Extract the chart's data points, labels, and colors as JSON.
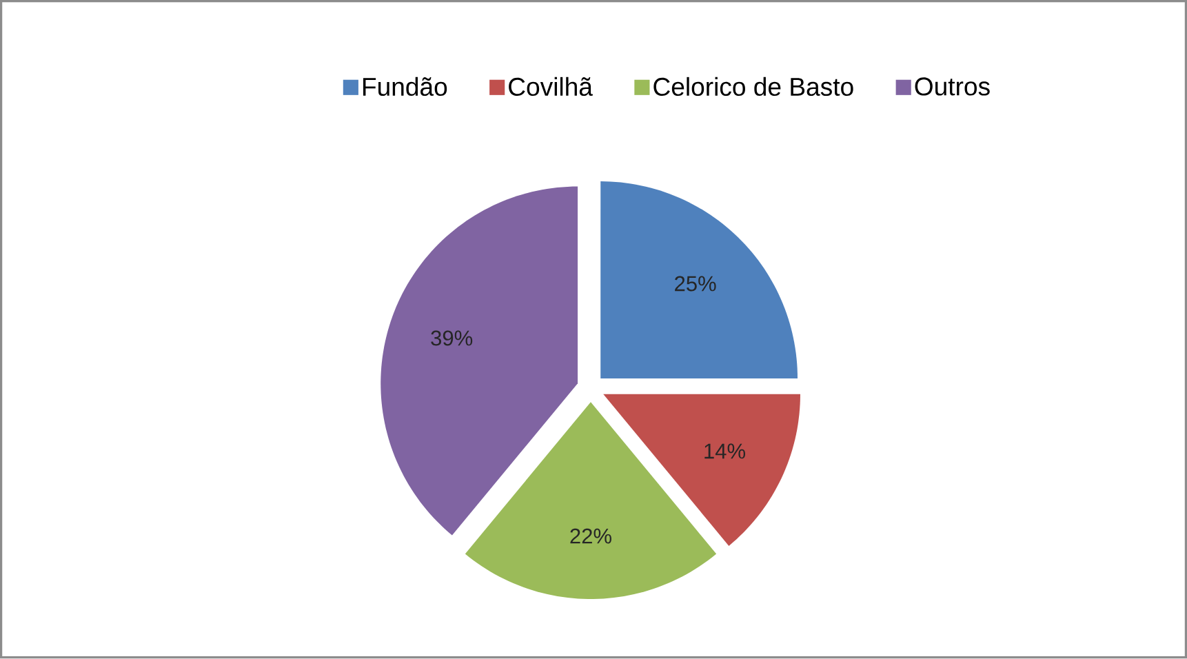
{
  "chart_data": {
    "type": "pie",
    "categories": [
      "Fundão",
      "Covilhã",
      "Celorico de Basto",
      "Outros"
    ],
    "values": [
      25,
      14,
      22,
      39
    ],
    "colors": [
      "#4f81bd",
      "#c0504d",
      "#9bbb59",
      "#8064a2"
    ],
    "value_labels": [
      "25%",
      "14%",
      "22%",
      "39%"
    ],
    "legend": "top"
  }
}
